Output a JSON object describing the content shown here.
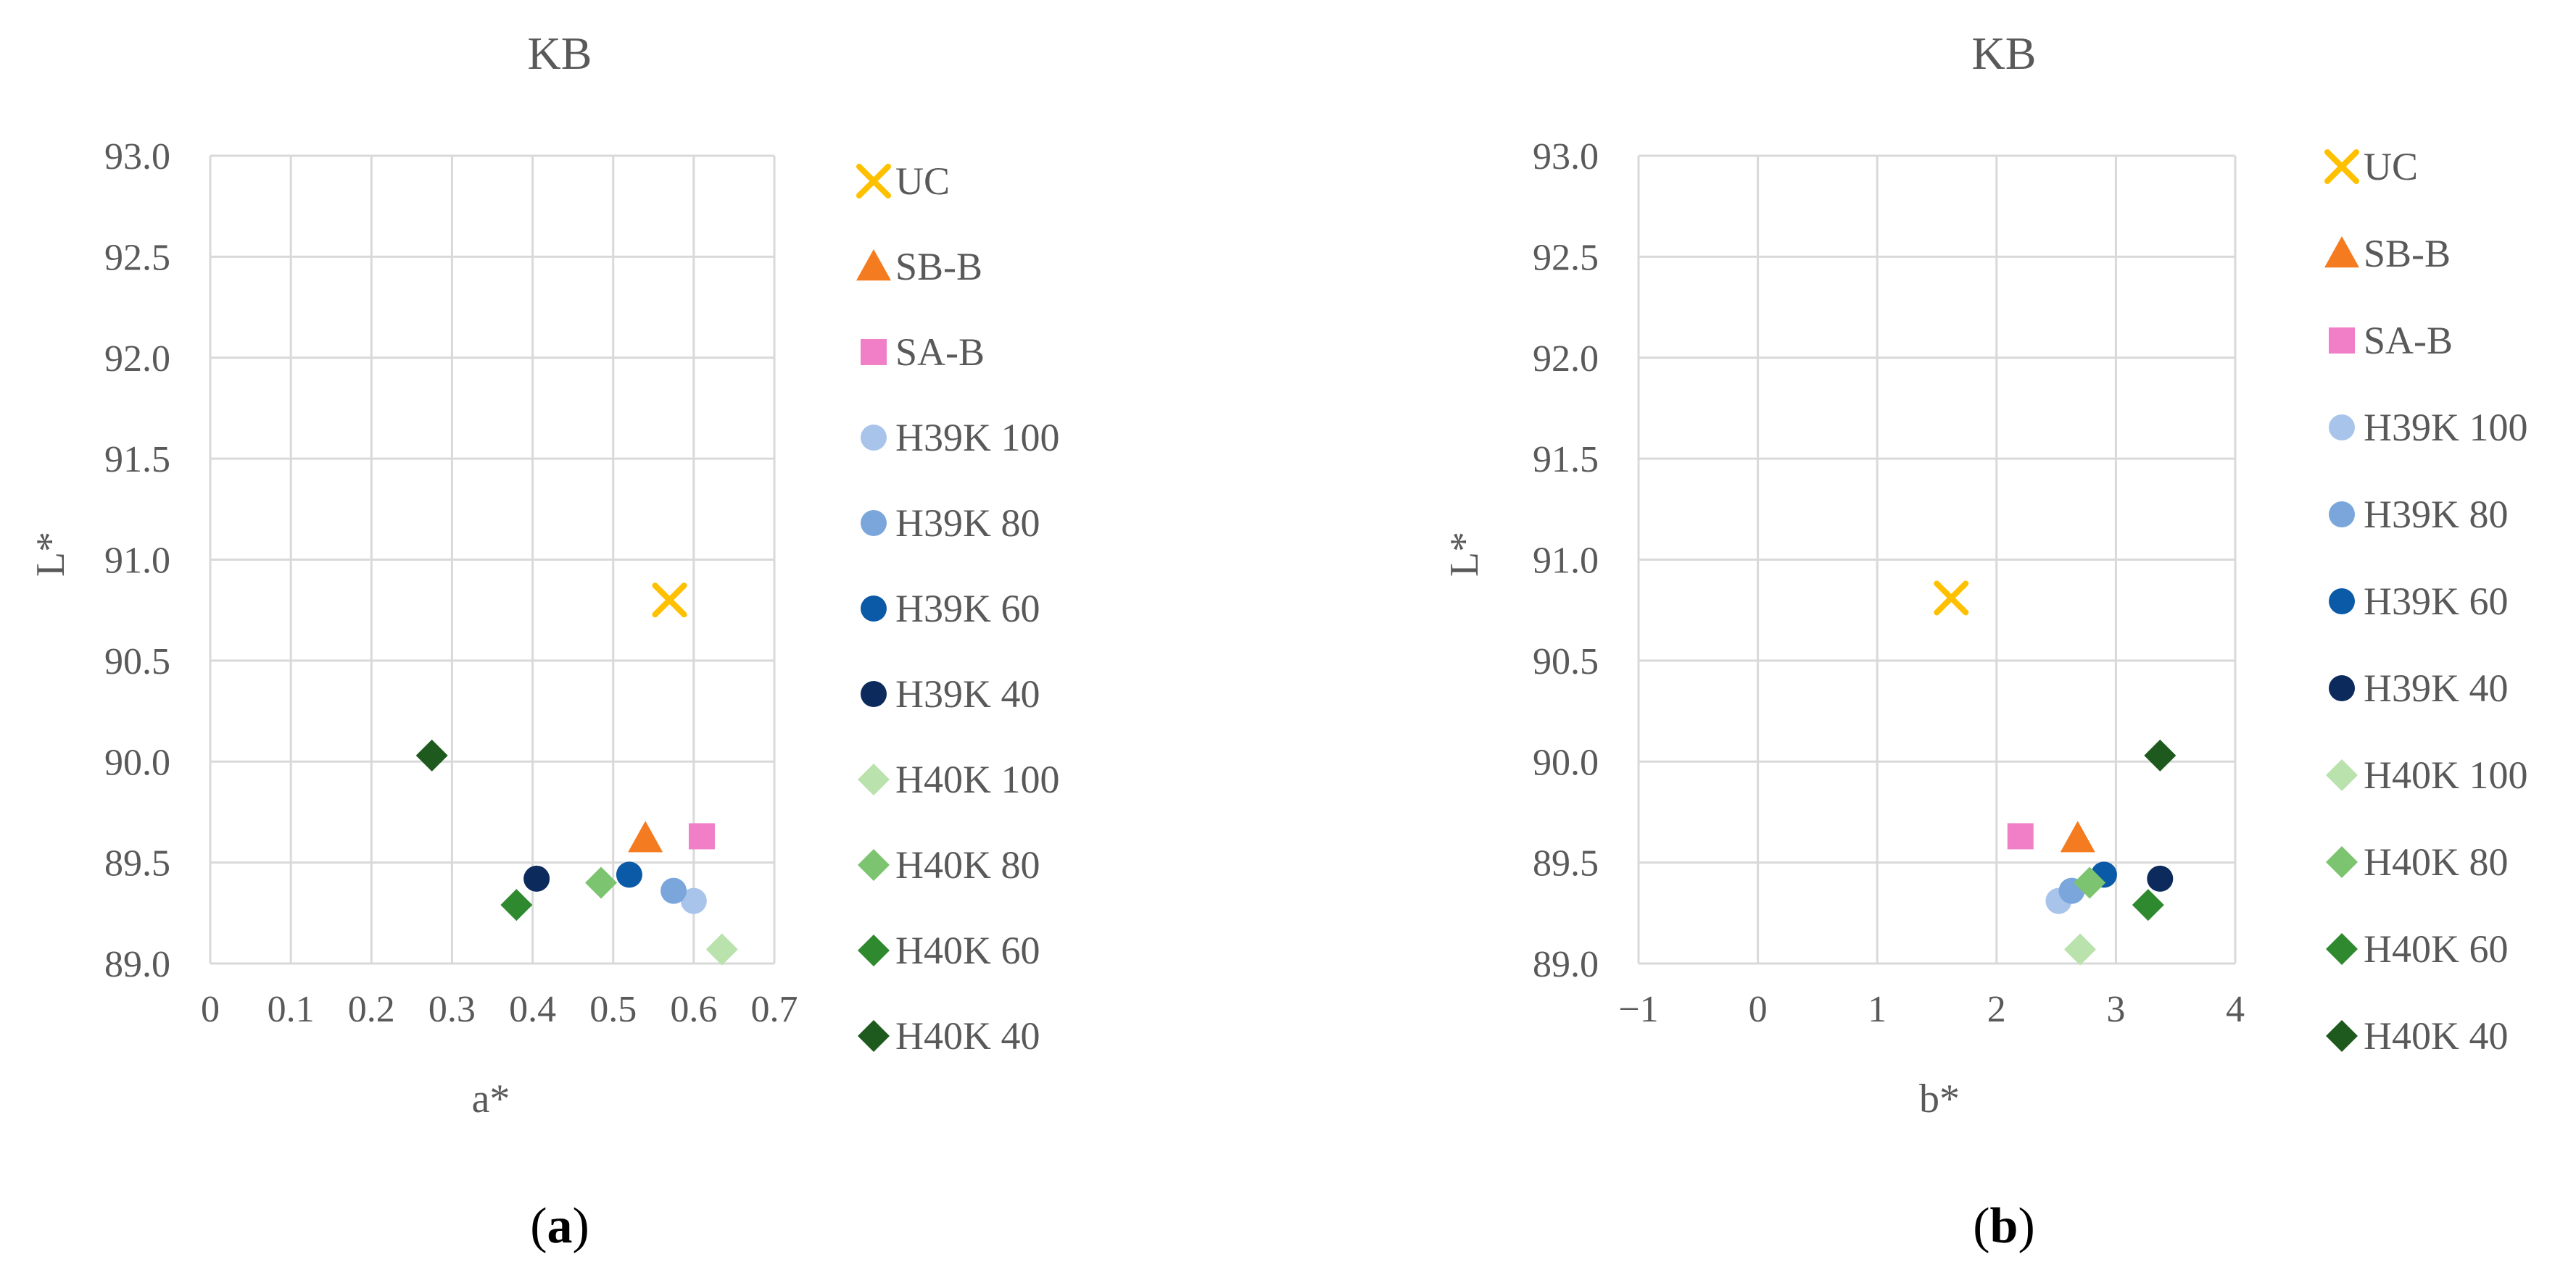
{
  "panel_labels": [
    "a",
    "b"
  ],
  "colors": {
    "UC": "#ffc000",
    "SB-B": "#f47b20",
    "SA-B": "#f07fc8",
    "H39K 100": "#a9c4ea",
    "H39K 80": "#7aa6dc",
    "H39K 60": "#0b5aa7",
    "H39K 40": "#0d2a5c",
    "H40K 100": "#b9e2ad",
    "H40K 80": "#7cc46f",
    "H40K 60": "#2f8a2f",
    "H40K 40": "#1e5a1e"
  },
  "chart_data": [
    {
      "type": "scatter",
      "title": "KB",
      "xlabel": "a*",
      "ylabel": "L*",
      "xlim": [
        0,
        0.7
      ],
      "ylim": [
        89.0,
        93.0
      ],
      "xticks": [
        "0",
        "0.1",
        "0.2",
        "0.3",
        "0.4",
        "0.5",
        "0.6",
        "0.7"
      ],
      "xtick_values": [
        0,
        0.1,
        0.2,
        0.3,
        0.4,
        0.5,
        0.6,
        0.7
      ],
      "yticks": [
        "89.0",
        "89.5",
        "90.0",
        "90.5",
        "91.0",
        "91.5",
        "92.0",
        "92.5",
        "93.0"
      ],
      "ytick_values": [
        89.0,
        89.5,
        90.0,
        90.5,
        91.0,
        91.5,
        92.0,
        92.5,
        93.0
      ],
      "grid": true,
      "legend_position": "right",
      "series": [
        {
          "name": "UC",
          "marker": "x",
          "x": 0.57,
          "y": 90.8
        },
        {
          "name": "SB-B",
          "marker": "triangle",
          "x": 0.54,
          "y": 89.62
        },
        {
          "name": "SA-B",
          "marker": "square",
          "x": 0.61,
          "y": 89.63
        },
        {
          "name": "H39K 100",
          "marker": "circle",
          "x": 0.6,
          "y": 89.31
        },
        {
          "name": "H39K 80",
          "marker": "circle",
          "x": 0.575,
          "y": 89.36
        },
        {
          "name": "H39K 60",
          "marker": "circle",
          "x": 0.52,
          "y": 89.44
        },
        {
          "name": "H39K 40",
          "marker": "circle",
          "x": 0.405,
          "y": 89.42
        },
        {
          "name": "H40K 100",
          "marker": "diamond",
          "x": 0.635,
          "y": 89.07
        },
        {
          "name": "H40K 80",
          "marker": "diamond",
          "x": 0.485,
          "y": 89.4
        },
        {
          "name": "H40K 60",
          "marker": "diamond",
          "x": 0.38,
          "y": 89.29
        },
        {
          "name": "H40K 40",
          "marker": "diamond",
          "x": 0.275,
          "y": 90.03
        }
      ]
    },
    {
      "type": "scatter",
      "title": "KB",
      "xlabel": "b*",
      "ylabel": "L*",
      "xlim": [
        -1,
        4
      ],
      "ylim": [
        89.0,
        93.0
      ],
      "xticks": [
        "−1",
        "0",
        "1",
        "2",
        "3",
        "4"
      ],
      "xtick_values": [
        -1,
        0,
        1,
        2,
        3,
        4
      ],
      "yticks": [
        "89.0",
        "89.5",
        "90.0",
        "90.5",
        "91.0",
        "91.5",
        "92.0",
        "92.5",
        "93.0"
      ],
      "ytick_values": [
        89.0,
        89.5,
        90.0,
        90.5,
        91.0,
        91.5,
        92.0,
        92.5,
        93.0
      ],
      "grid": true,
      "legend_position": "right",
      "series": [
        {
          "name": "UC",
          "marker": "x",
          "x": 1.62,
          "y": 90.81
        },
        {
          "name": "SB-B",
          "marker": "triangle",
          "x": 2.68,
          "y": 89.62
        },
        {
          "name": "SA-B",
          "marker": "square",
          "x": 2.2,
          "y": 89.63
        },
        {
          "name": "H39K 100",
          "marker": "circle",
          "x": 2.52,
          "y": 89.31
        },
        {
          "name": "H39K 80",
          "marker": "circle",
          "x": 2.63,
          "y": 89.36
        },
        {
          "name": "H39K 60",
          "marker": "circle",
          "x": 2.9,
          "y": 89.44
        },
        {
          "name": "H39K 40",
          "marker": "circle",
          "x": 3.37,
          "y": 89.42
        },
        {
          "name": "H40K 100",
          "marker": "diamond",
          "x": 2.7,
          "y": 89.07
        },
        {
          "name": "H40K 80",
          "marker": "diamond",
          "x": 2.78,
          "y": 89.4
        },
        {
          "name": "H40K 60",
          "marker": "diamond",
          "x": 3.27,
          "y": 89.29
        },
        {
          "name": "H40K 40",
          "marker": "diamond",
          "x": 3.37,
          "y": 90.03
        }
      ]
    }
  ]
}
